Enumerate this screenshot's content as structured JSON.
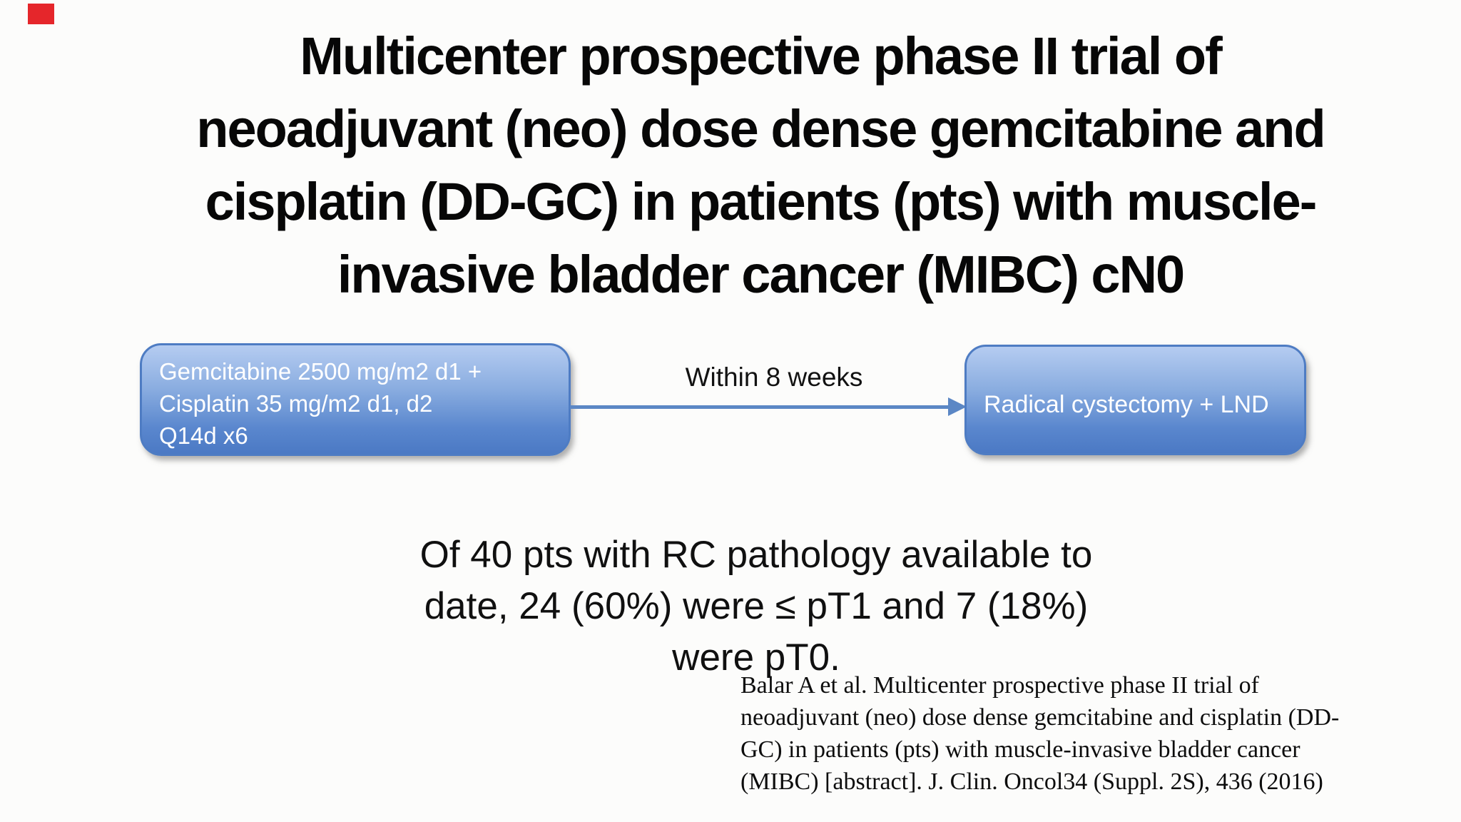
{
  "slide": {
    "background_color": "#fcfcfb",
    "marker": {
      "color": "#e5262b"
    },
    "title": {
      "lines": [
        "Multicenter prospective phase II trial of",
        "neoadjuvant (neo) dose dense gemcitabine and",
        "cisplatin (DD-GC) in patients (pts) with muscle-",
        "invasive bladder cancer (MIBC) cN0"
      ]
    },
    "flow": {
      "left_box": {
        "lines": [
          "Gemcitabine 2500 mg/m2 d1 +",
          "Cisplatin 35 mg/m2 d1, d2",
          "Q14d x6"
        ],
        "fill_top": "#b5ccf1",
        "fill_bottom": "#4b79c4",
        "border_color": "#4e7cc3",
        "text_color": "#ffffff"
      },
      "arrow": {
        "label": "Within 8 weeks",
        "color": "#5b87c5"
      },
      "right_box": {
        "label": "Radical cystectomy + LND"
      }
    },
    "finding": {
      "lines": [
        "Of 40 pts with RC pathology available to",
        "date, 24 (60%) were ≤ pT1 and 7 (18%)",
        "were pT0."
      ]
    },
    "citation": {
      "lines": [
        "Balar A et al. Multicenter prospective phase II trial of",
        "neoadjuvant (neo) dose dense gemcitabine and cisplatin (DD-",
        "GC) in patients (pts) with muscle-invasive bladder cancer",
        "(MIBC) [abstract]. J. Clin. Oncol34 (Suppl. 2S), 436 (2016)"
      ]
    }
  }
}
